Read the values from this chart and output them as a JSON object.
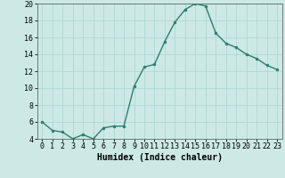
{
  "x": [
    0,
    1,
    2,
    3,
    4,
    5,
    6,
    7,
    8,
    9,
    10,
    11,
    12,
    13,
    14,
    15,
    16,
    17,
    18,
    19,
    20,
    21,
    22,
    23
  ],
  "y": [
    6.0,
    5.0,
    4.8,
    4.0,
    4.5,
    4.0,
    5.3,
    5.5,
    5.5,
    10.2,
    12.5,
    12.8,
    15.5,
    17.8,
    19.3,
    20.0,
    19.7,
    16.5,
    15.3,
    14.8,
    14.0,
    13.5,
    12.7,
    12.2
  ],
  "line_color": "#2e7d6e",
  "marker": "o",
  "marker_size": 2.0,
  "bg_color": "#cce9e5",
  "grid_color": "#b0d8d4",
  "xlabel": "Humidex (Indice chaleur)",
  "xlim": [
    -0.5,
    23.5
  ],
  "ylim": [
    4,
    20
  ],
  "yticks": [
    4,
    6,
    8,
    10,
    12,
    14,
    16,
    18,
    20
  ],
  "xticks": [
    0,
    1,
    2,
    3,
    4,
    5,
    6,
    7,
    8,
    9,
    10,
    11,
    12,
    13,
    14,
    15,
    16,
    17,
    18,
    19,
    20,
    21,
    22,
    23
  ],
  "xlabel_fontsize": 7,
  "tick_fontsize": 6
}
